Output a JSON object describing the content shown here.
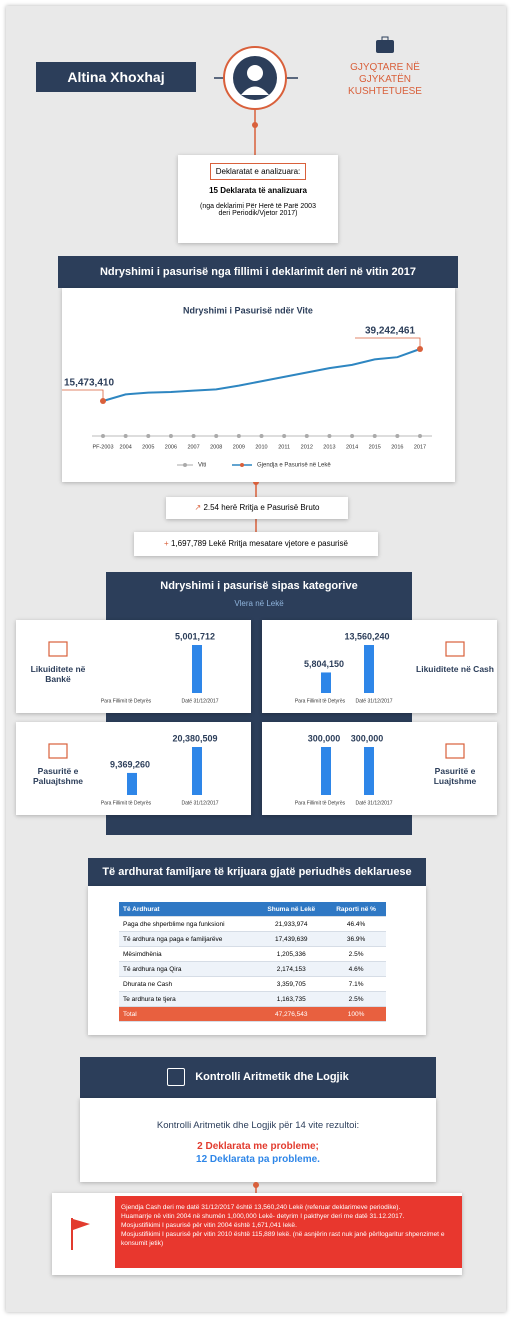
{
  "header": {
    "name": "Altina Xhoxhaj",
    "role": "GJYQTARE NË GJYKATËN KUSHTETUESE"
  },
  "declarations": {
    "label": "Deklaratat e analizuara:",
    "count": "15 Deklarata të analizuara",
    "note": "(nga deklarimi Për Herë të Parë 2003 deri Periodik/Vjetor 2017)"
  },
  "growth": {
    "heading": "Ndryshimi i pasurisë nga fillimi i deklarimit deri në vitin 2017",
    "chart_data": {
      "type": "line",
      "title": "Ndryshimi i Pasurisë ndër Vite",
      "x_legend": "Viti",
      "categories": [
        "PF-2003",
        "2004",
        "2005",
        "2006",
        "2007",
        "2008",
        "2009",
        "2010",
        "2011",
        "2012",
        "2013",
        "2014",
        "2015",
        "2016",
        "2017"
      ],
      "series": [
        {
          "name": "Gjendja e Pasurisë në Lekë",
          "color": "#2e86c1",
          "values": [
            15473410,
            18500000,
            19300000,
            19600000,
            20200000,
            20800000,
            22500000,
            24500000,
            26500000,
            28500000,
            30500000,
            32000000,
            34500000,
            35500000,
            39242461
          ],
          "value_labels": [
            "15,473,410",
            null,
            null,
            null,
            null,
            null,
            null,
            null,
            null,
            null,
            null,
            null,
            null,
            null,
            "39,242,461"
          ]
        }
      ]
    }
  },
  "summary": [
    "2.54 herë Rritja e Pasurisë Bruto",
    "1,697,789 Lekë Rritja mesatare vjetore e pasurisë"
  ],
  "categories_section": {
    "heading": "Ndryshimi i pasurisë sipas kategorive",
    "subtitle": "Vlera në Lekë",
    "color": "#2e86e8",
    "periods": [
      "Para Fillimit të Detyrës",
      "Datë 31/12/2017"
    ],
    "panels": [
      {
        "name": "Likuiditete në Bankë",
        "values": [
          null,
          5001712
        ],
        "value_labels": [
          null,
          "5,001,712"
        ]
      },
      {
        "name": "Likuiditete në Cash",
        "values": [
          5804150,
          13560240
        ],
        "value_labels": [
          "5,804,150",
          "13,560,240"
        ]
      },
      {
        "name": "Pasuritë e Paluajtshme",
        "values": [
          9369260,
          20380509
        ],
        "value_labels": [
          "9,369,260",
          "20,380,509"
        ]
      },
      {
        "name": "Pasuritë e Luajtshme",
        "values": [
          300000,
          300000
        ],
        "value_labels": [
          "300,000",
          "300,000"
        ]
      }
    ]
  },
  "income": {
    "heading": "Të ardhurat familjare të krijuara gjatë periudhës deklaruese",
    "columns": [
      "Të Ardhurat",
      "Shuma në Lekë",
      "Raporti në %"
    ],
    "rows": [
      [
        "Paga dhe shperblime nga funksioni",
        "21,933,974",
        "46.4%"
      ],
      [
        "Të ardhura nga paga e familjarëve",
        "17,439,639",
        "36.9%"
      ],
      [
        "Mësimdhënia",
        "1,205,336",
        "2.5%"
      ],
      [
        "Të ardhura nga Qira",
        "2,174,153",
        "4.6%"
      ],
      [
        "Dhurata ne Cash",
        "3,359,705",
        "7.1%"
      ],
      [
        "Te ardhura te tjera",
        "1,163,735",
        "2.5%"
      ]
    ],
    "total": [
      "Total",
      "47,276,543",
      "100%"
    ]
  },
  "control": {
    "heading": "Kontrolli Aritmetik dhe Logjik",
    "intro": "Kontrolli Aritmetik dhe Logjik për 14 vite rezultoi:",
    "problems": "2 Deklarata me probleme;",
    "ok": "12 Deklarata pa probleme."
  },
  "notes": [
    "Gjendja Cash deri me datë 31/12/2017 është 13,560,240 Lekë (referuar deklarimeve periodike).",
    "Huamarrje në vitin 2004 në shumën 1,000,000 Lekë- detyrim I pakthyer deri me datë 31.12.2017.",
    "Mosjustifikimi I pasurisë për vitin 2004 është 1,671,041 lekë.",
    "Mosjustifikimi I pasurisë për vitin 2010 është 115,889 lekë. (në asnjërin rast nuk janë përllogaritur shpenzimet e konsumit jetik)"
  ]
}
